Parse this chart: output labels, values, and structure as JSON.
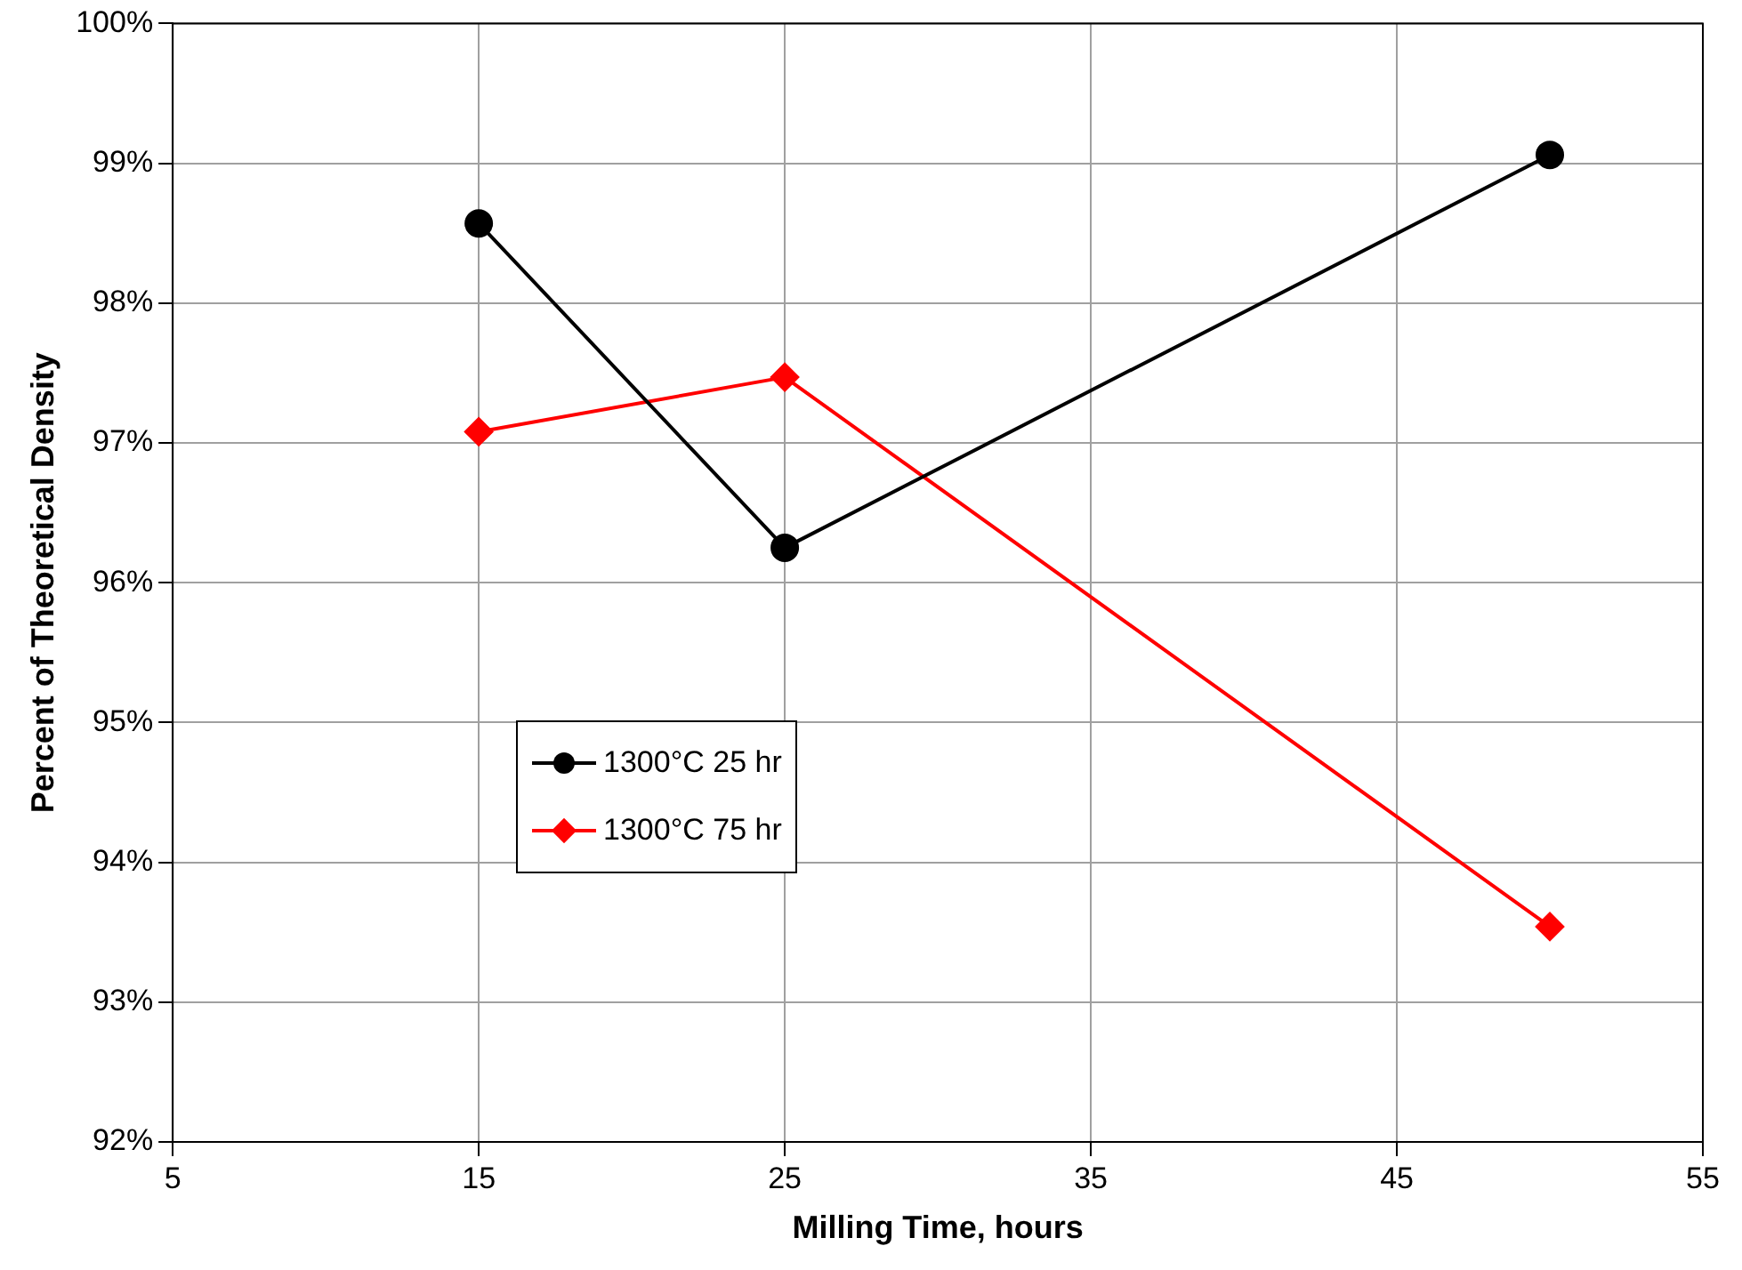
{
  "chart_data": {
    "type": "line",
    "xlabel": "Milling Time, hours",
    "ylabel": "Percent of Theoretical Density",
    "xlim": [
      5,
      55
    ],
    "xticks": [
      5,
      15,
      25,
      35,
      45,
      55
    ],
    "ylim": [
      92,
      100
    ],
    "yticks": [
      {
        "value": 92,
        "label": "92%"
      },
      {
        "value": 93,
        "label": "93%"
      },
      {
        "value": 94,
        "label": "94%"
      },
      {
        "value": 95,
        "label": "95%"
      },
      {
        "value": 96,
        "label": "96%"
      },
      {
        "value": 97,
        "label": "97%"
      },
      {
        "value": 98,
        "label": "98%"
      },
      {
        "value": 99,
        "label": "99%"
      },
      {
        "value": 100,
        "label": "100%"
      }
    ],
    "grid": true,
    "legend": "center left",
    "series": [
      {
        "name": "1300°C 25 hr",
        "color": "#000000",
        "marker": "circle",
        "x": [
          15,
          25,
          50
        ],
        "values": [
          98.57,
          96.25,
          99.06
        ]
      },
      {
        "name": "1300°C 75 hr",
        "color": "#ff0000",
        "marker": "diamond",
        "x": [
          15,
          25,
          50
        ],
        "values": [
          97.08,
          97.47,
          93.54
        ]
      }
    ]
  }
}
